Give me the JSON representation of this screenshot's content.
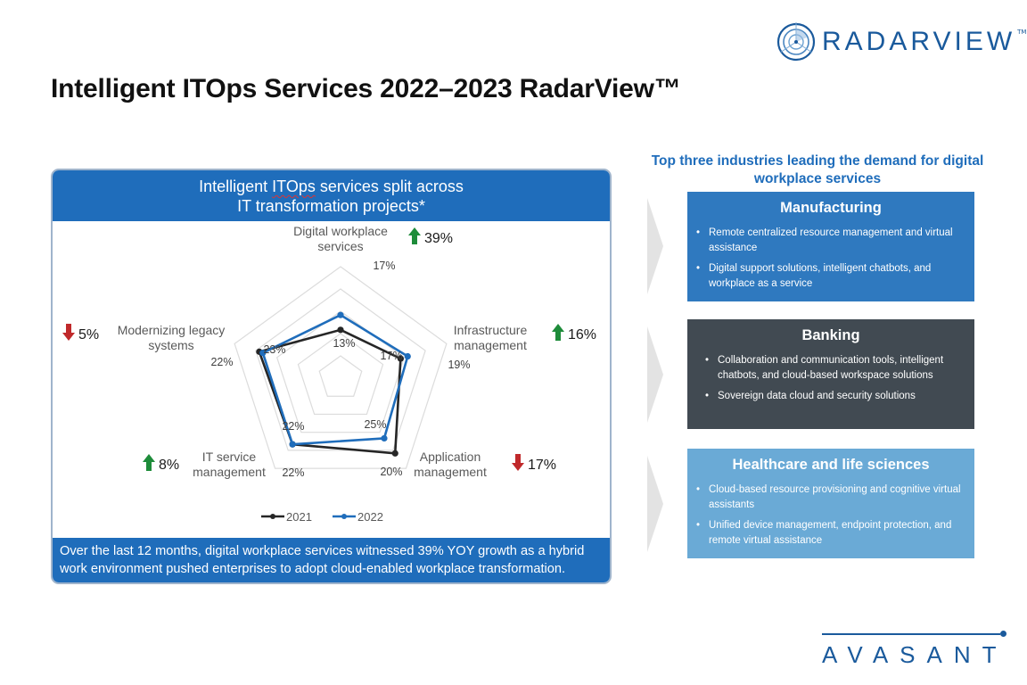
{
  "brand": {
    "radarview_logo": "RADARVIEW",
    "radarview_tm": "TM",
    "footer_logo": "AVASANT",
    "accent_color": "#1f6dbb"
  },
  "page": {
    "title": "Intelligent ITOps Services 2022–2023 RadarView™"
  },
  "panel": {
    "header_line1_pre": "Intelligent ",
    "header_line1_mark": "ITOps",
    "header_line1_post": " services split across",
    "header_line2": "IT transformation projects*",
    "footer_line1": "Over the last 12 months, digital workplace services witnessed 39% YOY growth as a hybrid",
    "footer_line2": "work environment pushed enterprises to adopt cloud-enabled workplace transformation."
  },
  "chart_data": {
    "type": "radar",
    "title": "Intelligent ITOps services split across IT transformation projects*",
    "categories": [
      "Digital workplace services",
      "Infrastructure management",
      "Application management",
      "IT service management",
      "Modernizing legacy systems"
    ],
    "category_lines": [
      [
        "Digital workplace",
        "services"
      ],
      [
        "Infrastructure",
        "management"
      ],
      [
        "Application",
        "management"
      ],
      [
        "IT service",
        "management"
      ],
      [
        "Modernizing legacy",
        "systems"
      ]
    ],
    "series": [
      {
        "name": "2021",
        "values": [
          13,
          17,
          25,
          22,
          23
        ],
        "labels": [
          "13%",
          "17%",
          "25%",
          "22%",
          "23%"
        ],
        "color": "#262626"
      },
      {
        "name": "2022",
        "values": [
          17,
          19,
          20,
          22,
          22
        ],
        "labels": [
          "17%",
          "19%",
          "20%",
          "22%",
          "22%"
        ],
        "color": "#1f6dbb"
      }
    ],
    "changes": [
      {
        "direction": "up",
        "label": "39%"
      },
      {
        "direction": "up",
        "label": "16%"
      },
      {
        "direction": "down",
        "label": "17%"
      },
      {
        "direction": "up",
        "label": "8%"
      },
      {
        "direction": "down",
        "label": "5%"
      }
    ],
    "change_colors": {
      "up": "#1e8c3a",
      "down": "#c0292b"
    },
    "range": [
      0,
      30
    ],
    "grid": true,
    "grid_levels": 5,
    "legend_position": "bottom"
  },
  "industries": {
    "title_line1": "Top three industries leading the demand for digital",
    "title_line2": "workplace services",
    "items": [
      {
        "name": "Manufacturing",
        "bullets": [
          "Remote centralized resource management and virtual assistance",
          "Digital support solutions, intelligent chatbots, and workplace as a service"
        ]
      },
      {
        "name": "Banking",
        "bullets": [
          "Collaboration and communication tools, intelligent chatbots, and cloud-based workspace solutions",
          "Sovereign data cloud and security solutions"
        ]
      },
      {
        "name": "Healthcare and life sciences",
        "bullets": [
          "Cloud-based resource provisioning and cognitive virtual assistants",
          "Unified device management, endpoint protection, and remote virtual assistance"
        ]
      }
    ]
  }
}
